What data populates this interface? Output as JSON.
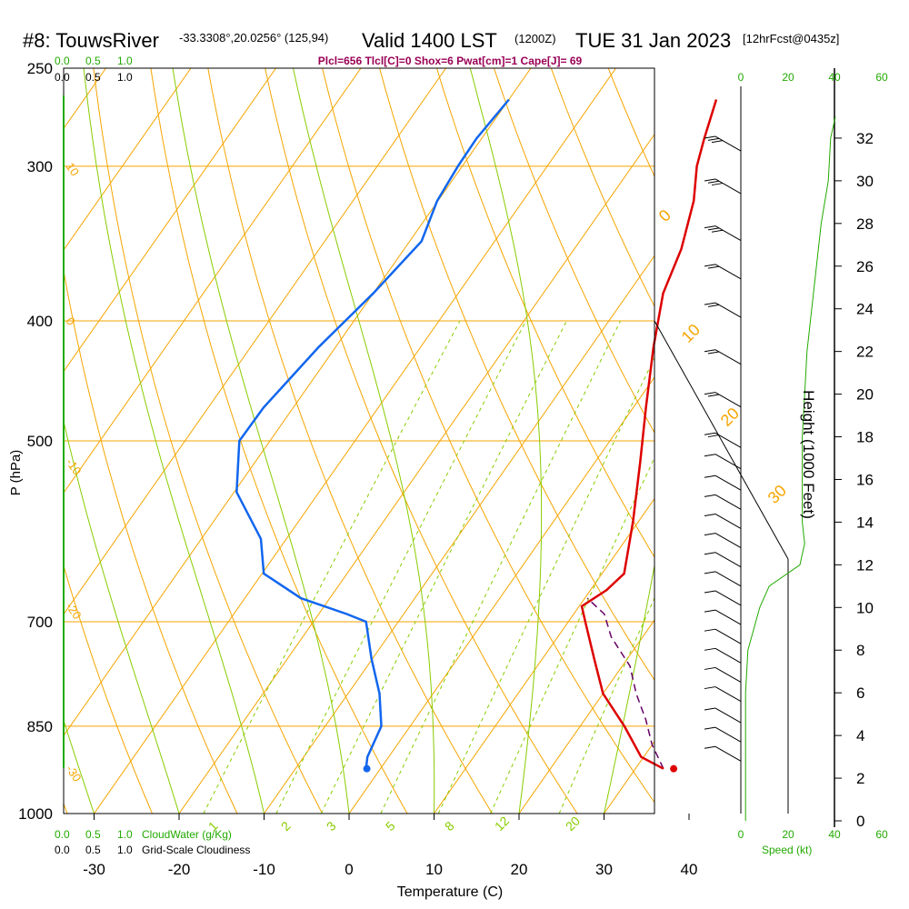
{
  "header": {
    "station": "#8: TouwsRiver",
    "coords": "-33.3308°,20.0256° (125,94)",
    "valid": "Valid 1400 LST",
    "zulu": "(1200Z)",
    "date": "TUE 31 Jan 2023",
    "fcst": "[12hrFcst@0435z]",
    "params": "Plcl=656 Tlcl[C]=0 Shox=6 Pwat[cm]=1 Cape[J]= 69"
  },
  "labels": {
    "y_axis": "P (hPa)",
    "x_axis": "Temperature (C)",
    "height_axis": "Height (1000 Feet)",
    "cloudwater": "CloudWater (g/Kg)",
    "cloudiness": "Grid-Scale Cloudiness",
    "speed": "Speed (kt)"
  },
  "scales": {
    "cloud_top_green": [
      "0.0",
      "0.5",
      "1.0"
    ],
    "cloud_top_black": [
      "0.0",
      "0.5",
      "1.0"
    ],
    "cloud_bottom_green": [
      "0.0",
      "0.5",
      "1.0"
    ],
    "cloud_bottom_black": [
      "0.0",
      "0.5",
      "1.0"
    ],
    "speed_top": [
      "0",
      "20",
      "40",
      "60"
    ],
    "speed_bottom": [
      "0",
      "20",
      "40",
      "60"
    ]
  },
  "colors": {
    "isotherm": "#f5a500",
    "isobar": "#f5a500",
    "dry_adiabat": "#f5a500",
    "moist_adiabat": "#88cc00",
    "mixing_ratio": "#88cc00",
    "temperature": "#dd0000",
    "dewpoint": "#1166ee",
    "parcel": "#660066",
    "green_text": "#22aa00",
    "params_text": "#990055"
  },
  "chart_data": {
    "type": "line",
    "title": "#8: TouwsRiver  Valid 1400 LST (1200Z) TUE 31 Jan 2023",
    "xlabel": "Temperature (C)",
    "ylabel": "P (hPa)",
    "xlim": [
      -35,
      45
    ],
    "ylim": [
      1000,
      250
    ],
    "x_ticks": [
      -30,
      -20,
      -10,
      0,
      10,
      20,
      30,
      40
    ],
    "p_ticks": [
      250,
      300,
      400,
      500,
      700,
      850,
      1000
    ],
    "height_ticks": [
      0,
      2,
      4,
      6,
      8,
      10,
      12,
      14,
      16,
      18,
      20,
      22,
      24,
      26,
      28,
      30,
      32
    ],
    "isotherm_labels": [
      {
        "t": -10,
        "text": "10"
      },
      {
        "t": 0,
        "text": "0"
      },
      {
        "t": 10,
        "text": "10"
      },
      {
        "t": 20,
        "text": "20"
      },
      {
        "t": 30,
        "text": "30"
      }
    ],
    "adiabat_labels": [
      {
        "p": 300,
        "text": "10"
      },
      {
        "p": 400,
        "text": "0"
      },
      {
        "p": 520,
        "text": "-10"
      },
      {
        "p": 680,
        "text": "-20"
      },
      {
        "p": 920,
        "text": "-30"
      }
    ],
    "mixing_ratio_labels": [
      "1",
      "2",
      "3",
      "5",
      "8",
      "12",
      "20"
    ],
    "series": [
      {
        "name": "Temperature",
        "p": [
          265,
          285,
          300,
          320,
          350,
          380,
          420,
          470,
          520,
          580,
          610,
          640,
          660,
          680,
          700,
          750,
          800,
          850,
          900,
          920
        ],
        "t": [
          -15.6,
          -13.8,
          -12.4,
          -9.9,
          -7.4,
          -5.9,
          -2.6,
          1.5,
          5.3,
          9.3,
          11.0,
          12.6,
          11.9,
          10.3,
          12.0,
          16.1,
          20.0,
          25.2,
          29.7,
          33.3
        ]
      },
      {
        "name": "Dewpoint",
        "p": [
          265,
          285,
          300,
          320,
          345,
          380,
          420,
          470,
          500,
          550,
          600,
          640,
          670,
          690,
          700,
          750,
          800,
          850,
          900,
          920
        ],
        "t": [
          -40,
          -40.6,
          -40.5,
          -40.1,
          -38.6,
          -40,
          -42,
          -43.5,
          -43.6,
          -39.7,
          -33.0,
          -29.8,
          -23.4,
          -16.7,
          -13.8,
          -10.1,
          -6.3,
          -3.4,
          -2.5,
          -1.7
        ]
      },
      {
        "name": "Parcel",
        "p": [
          920,
          880,
          840,
          800,
          760,
          720,
          690,
          670
        ],
        "t": [
          33.3,
          30.0,
          27.2,
          23.9,
          20.9,
          16.3,
          13.6,
          10.3
        ]
      }
    ],
    "surface_points": [
      {
        "name": "Surface temperature",
        "p": 920,
        "t": 34.5
      },
      {
        "name": "Surface dewpoint",
        "p": 920,
        "t": -1.6
      }
    ],
    "wind_barbs": [
      {
        "h": 31.4,
        "speed": 30
      },
      {
        "h": 29.4,
        "speed": 25
      },
      {
        "h": 27.2,
        "speed": 25
      },
      {
        "h": 25.4,
        "speed": 20
      },
      {
        "h": 23.6,
        "speed": 20
      },
      {
        "h": 21.4,
        "speed": 15
      },
      {
        "h": 19.4,
        "speed": 15
      },
      {
        "h": 17.5,
        "speed": 15
      },
      {
        "h": 16.5,
        "speed": 10
      },
      {
        "h": 15.5,
        "speed": 10
      },
      {
        "h": 14.6,
        "speed": 10
      },
      {
        "h": 13.7,
        "speed": 10
      },
      {
        "h": 12.8,
        "speed": 10
      },
      {
        "h": 11.9,
        "speed": 5
      },
      {
        "h": 11.0,
        "speed": 5
      },
      {
        "h": 10.1,
        "speed": 5
      },
      {
        "h": 9.2,
        "speed": 5
      },
      {
        "h": 8.3,
        "speed": 5
      },
      {
        "h": 7.4,
        "speed": 5
      },
      {
        "h": 6.5,
        "speed": 5
      },
      {
        "h": 5.6,
        "speed": 5
      },
      {
        "h": 4.6,
        "speed": 5
      },
      {
        "h": 3.7,
        "speed": 5
      },
      {
        "h": 2.8,
        "speed": 5
      }
    ],
    "wind_speed_profile": {
      "h": [
        0,
        2,
        4,
        6,
        8,
        10,
        11,
        12,
        13,
        14,
        16,
        18,
        20,
        22,
        24,
        26,
        28,
        30,
        32,
        33
      ],
      "kt": [
        2,
        2,
        2,
        2,
        3,
        8,
        12,
        25,
        27,
        26,
        26,
        26,
        27,
        28,
        30,
        32,
        34,
        37,
        38,
        40
      ]
    }
  }
}
